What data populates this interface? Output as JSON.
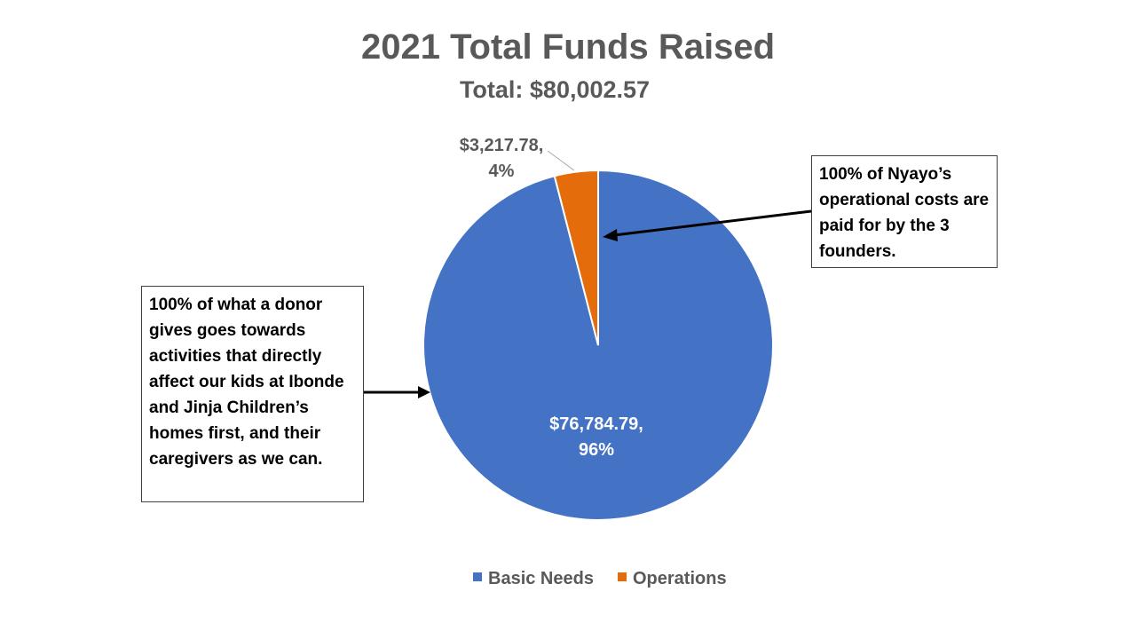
{
  "chart_data": {
    "type": "pie",
    "title": "2021 Total Funds Raised",
    "subtitle": "Total: $80,002.57",
    "series": [
      {
        "name": "Basic Needs",
        "value": 76784.79,
        "value_label": "$76,784.79,",
        "percent_label": "96%",
        "color": "#4472C4"
      },
      {
        "name": "Operations",
        "value": 3217.78,
        "value_label": "$3,217.78,",
        "percent_label": "4%",
        "color": "#E46C0A"
      }
    ],
    "legend_position": "bottom"
  },
  "annotations": {
    "operations_note": "100% of Nyayo’s operational costs are paid for by the 3 founders.",
    "donor_note": "100% of what a donor gives goes towards activities that directly affect our kids at Ibonde and Jinja Children’s homes first, and their caregivers as we can."
  }
}
